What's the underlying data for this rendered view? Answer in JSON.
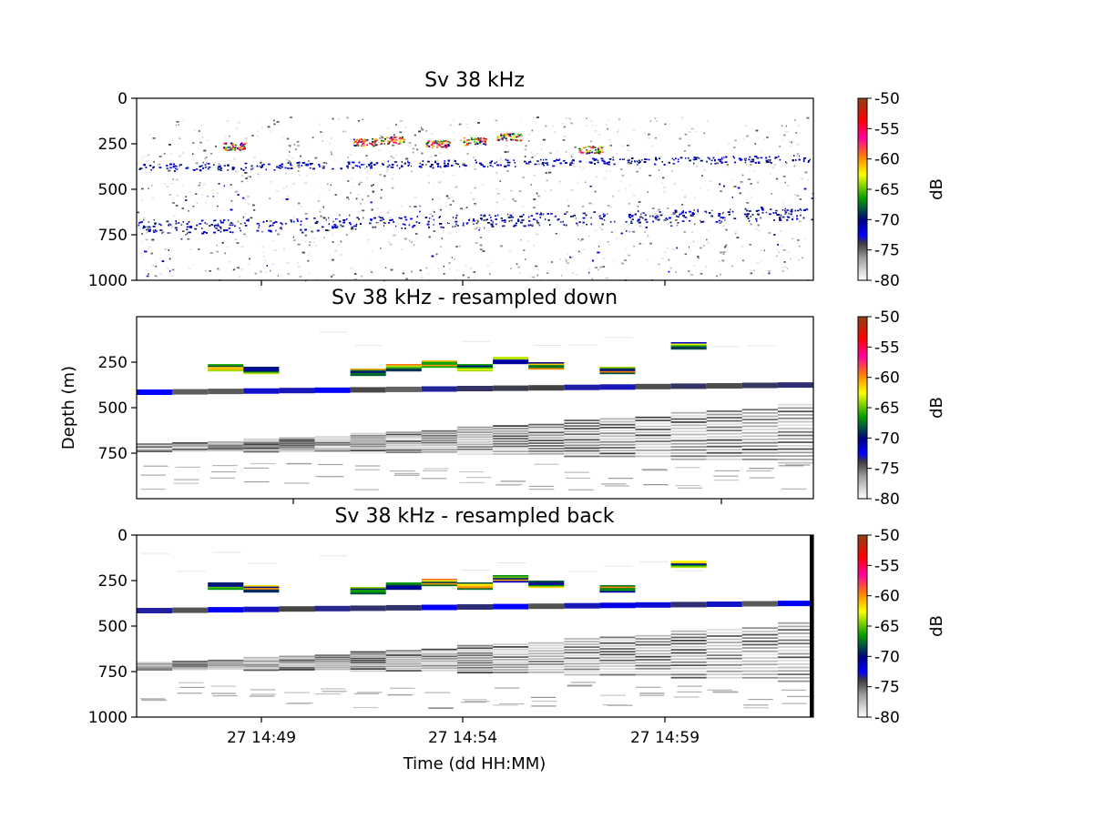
{
  "chart_data": [
    {
      "type": "heatmap",
      "title": "Sv 38 kHz",
      "ylabel": "",
      "xlabel": "",
      "ylim": [
        1000,
        0
      ],
      "y_ticks": [
        "0",
        "250",
        "500",
        "750",
        "1000"
      ],
      "y_tick_values": [
        0,
        250,
        500,
        750,
        1000
      ],
      "x_tick_labels_shown": false,
      "colorbar": {
        "label": "dB",
        "range": [
          -80,
          -50
        ],
        "ticks": [
          "-50",
          "-55",
          "-60",
          "-65",
          "-70",
          "-75",
          "-80"
        ]
      },
      "features": [
        {
          "name": "shallow layer",
          "depth": 390,
          "level_db": -72
        },
        {
          "name": "deep scattering layer",
          "depth": 700,
          "level_db": -73
        },
        {
          "name": "patches",
          "depth_range": [
            180,
            300
          ],
          "level_db": -58
        }
      ]
    },
    {
      "type": "heatmap",
      "title": "Sv 38 kHz - resampled down",
      "ylabel": "Depth (m)",
      "xlabel": "",
      "y_ticks": [
        "250",
        "500",
        "750"
      ],
      "y_tick_values": [
        250,
        500,
        750
      ],
      "x_tick_labels_shown": false,
      "colorbar": {
        "label": "dB",
        "range": [
          -80,
          -50
        ],
        "ticks": [
          "-50",
          "-55",
          "-60",
          "-65",
          "-70",
          "-75",
          "-80"
        ]
      }
    },
    {
      "type": "heatmap",
      "title": "Sv 38 kHz - resampled back",
      "ylabel": "",
      "xlabel": "Time (dd HH:MM)",
      "ylim": [
        1000,
        0
      ],
      "y_ticks": [
        "0",
        "250",
        "500",
        "750",
        "1000"
      ],
      "y_tick_values": [
        0,
        250,
        500,
        750,
        1000
      ],
      "x_ticks": [
        "27 14:49",
        "27 14:54",
        "27 14:59"
      ],
      "colorbar": {
        "label": "dB",
        "range": [
          -80,
          -50
        ],
        "ticks": [
          "-50",
          "-55",
          "-60",
          "-65",
          "-70",
          "-75",
          "-80"
        ]
      }
    }
  ],
  "colormap": [
    "#ffffff",
    "#9a9a9a",
    "#0000c8",
    "#00a000",
    "#ffff00",
    "#ff8000",
    "#ff0000",
    "#ff00a0",
    "#8b4513"
  ]
}
